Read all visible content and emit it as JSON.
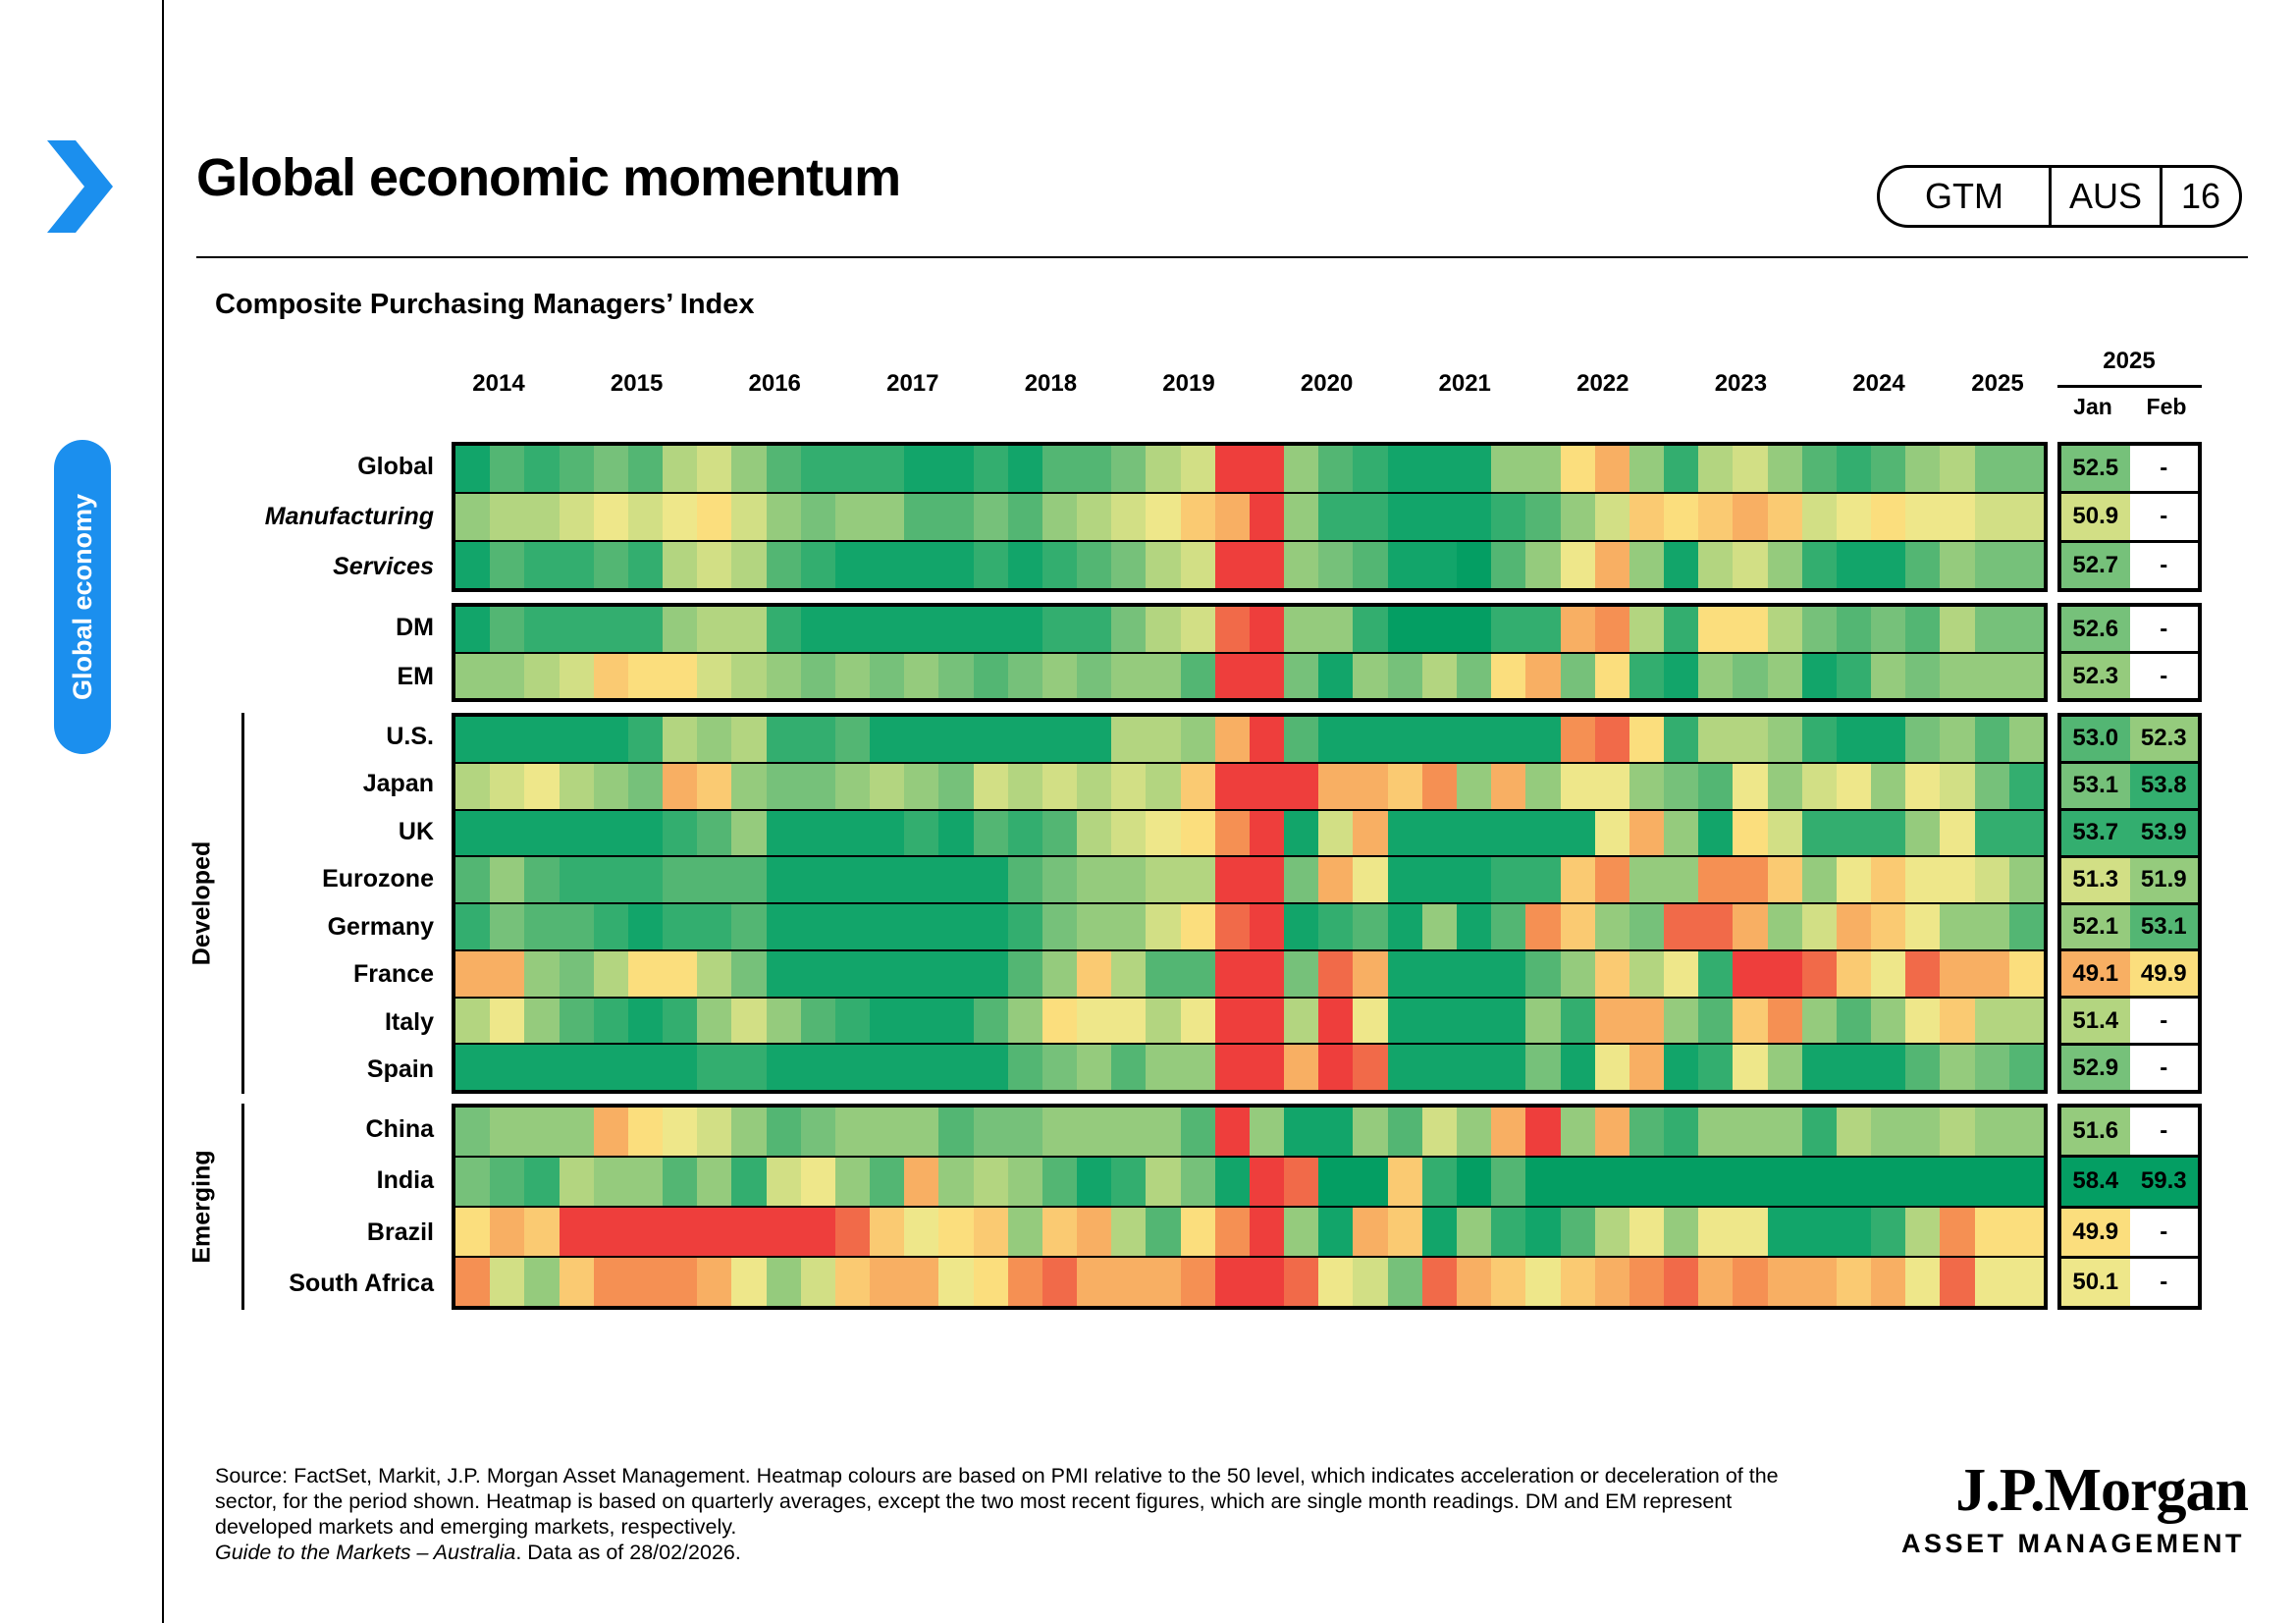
{
  "page": {
    "title": "Global economic momentum",
    "section_tab": "Global economy",
    "badge": {
      "gtm": "GTM",
      "region": "AUS",
      "page_num": "16"
    }
  },
  "chart": {
    "heading": "Composite Purchasing Managers’ Index",
    "table_header": {
      "year": "2025",
      "jan": "Jan",
      "feb": "Feb"
    }
  },
  "footer": {
    "line1": "Source: FactSet, Markit, J.P. Morgan Asset Management. Heatmap colours are based on PMI relative to the 50 level, which indicates acceleration or deceleration of the",
    "line2": "sector, for the period shown. Heatmap is based on quarterly averages, except the two most recent figures, which are single month readings. DM and EM represent",
    "line3": "developed markets and emerging markets, respectively.",
    "line4_italic": "Guide to the Markets – Australia",
    "line4_rest": ". Data as of 28/02/2026."
  },
  "logo": {
    "name": "J.P.Morgan",
    "sub": "ASSET MANAGEMENT"
  },
  "chart_data": {
    "type": "heatmap",
    "title": "Composite Purchasing Managers’ Index",
    "year_labels": [
      "2014",
      "2015",
      "2016",
      "2017",
      "2018",
      "2019",
      "2020",
      "2021",
      "2022",
      "2023",
      "2024",
      "2025"
    ],
    "n_cols": 46,
    "legend_note": "Heatmap colours based on PMI relative to 50; quarterly averages, last two columns are Jan/Feb single-month readings shown numerically at right",
    "palette": {
      "g5": "#049E63",
      "g4": "#12A56A",
      "g3": "#33AE6F",
      "g2": "#53B673",
      "g1": "#76C17A",
      "y3": "#95CB7D",
      "y2": "#B3D580",
      "y1": "#D2DF85",
      "y0": "#EEE78A",
      "o1": "#FBDE7D",
      "o2": "#FACA72",
      "o3": "#F8AF63",
      "o4": "#F59053",
      "r1": "#F16A49",
      "r2": "#EE3E3C"
    },
    "groups": [
      {
        "id": "composite",
        "bracket": null,
        "rows": [
          {
            "label": "Global",
            "italic": false,
            "jan": "52.5",
            "feb": "-",
            "jan_color": "g1",
            "feb_color": null,
            "cells": "g4 g2 g3 g2 g1 g2 y2 y1 y3 g2 g3 g3 g3 g4 g4 g3 g4 g2 g2 g1 y2 y1 r2 r2 y3 g2 g3 g4 g4 g4 y3 y3 o1 o3 y3 g3 y2 y1 y3 g2 g3 g2 y3 y2 g1 g1"
          },
          {
            "label": "Manufacturing",
            "italic": true,
            "jan": "50.9",
            "feb": "-",
            "jan_color": "y1",
            "feb_color": null,
            "cells": "y3 y2 y2 y1 y0 y1 y0 o1 y1 y3 g1 y3 y3 g2 g2 g1 g2 y3 y2 y1 y0 o2 o3 r2 y3 g3 g3 g4 g4 g4 g3 g2 y3 y1 o2 o1 o2 o3 o2 y1 y0 o1 y0 y0 y1 y1"
          },
          {
            "label": "Services",
            "italic": true,
            "jan": "52.7",
            "feb": "-",
            "jan_color": "g1",
            "feb_color": null,
            "cells": "g4 g2 g3 g3 g2 g3 y2 y1 y2 g2 g3 g4 g4 g4 g4 g3 g4 g3 g2 g1 y2 y1 r2 r2 y3 g1 g2 g4 g4 g5 g2 y3 y0 o3 y3 g4 y2 y1 y3 g3 g4 g4 g2 y3 g1 g1"
          }
        ]
      },
      {
        "id": "dm-em",
        "bracket": null,
        "rows": [
          {
            "label": "DM",
            "italic": false,
            "jan": "52.6",
            "feb": "-",
            "jan_color": "g1",
            "feb_color": null,
            "cells": "g4 g2 g3 g3 g3 g3 y3 y2 y2 g3 g4 g4 g4 g4 g4 g4 g4 g3 g3 g1 y2 y1 r1 r2 y3 y3 g3 g5 g5 g5 g3 g3 o3 o4 y2 g3 o1 o1 y2 g1 g2 g1 g2 y2 g1 g1"
          },
          {
            "label": "EM",
            "italic": false,
            "jan": "52.3",
            "feb": "-",
            "jan_color": "y3",
            "feb_color": null,
            "cells": "y3 y3 y2 y1 o2 o1 o1 y1 y2 y3 g1 y3 g1 y3 g1 g2 g1 y3 g1 y3 y3 g2 r2 r2 g1 g4 y3 g1 y2 g1 o1 o3 g1 o1 g3 g4 y3 g1 y3 g4 g3 y3 g1 y3 y3 y3"
          }
        ]
      },
      {
        "id": "developed",
        "bracket": "Developed",
        "rows": [
          {
            "label": "U.S.",
            "italic": false,
            "jan": "53.0",
            "feb": "52.3",
            "jan_color": "g2",
            "feb_color": "y3",
            "cells": "g4 g4 g4 g4 g4 g3 y2 y3 y2 g3 g3 g2 g4 g4 g4 g4 g4 g4 g4 y2 y2 y3 o3 r2 g2 g4 g4 g4 g4 g4 g4 g4 o4 r1 o1 g3 y2 y2 y3 g3 g4 g4 g1 y3 g2 y3"
          },
          {
            "label": "Japan",
            "italic": false,
            "jan": "53.1",
            "feb": "53.8",
            "jan_color": "g1",
            "feb_color": "g3",
            "cells": "y2 y1 y0 y2 y3 g1 o3 o2 y3 g1 g1 y3 y2 y3 g1 y1 y2 y1 y2 y1 y2 o2 r2 r2 r2 o3 o3 o2 o4 y3 o3 y3 y0 y0 y3 g1 g2 y0 y3 y1 y0 y3 y0 y1 g1 g3"
          },
          {
            "label": "UK",
            "italic": false,
            "jan": "53.7",
            "feb": "53.9",
            "jan_color": "g3",
            "feb_color": "g3",
            "cells": "g4 g4 g4 g4 g4 g4 g3 g2 y3 g4 g4 g4 g4 g3 g4 g2 g3 g2 y2 y1 y0 o1 o4 r2 g4 y1 o3 g4 g4 g4 g4 g4 g4 y0 o3 y3 g4 o1 y1 g3 g3 g3 y3 y0 g3 g3"
          },
          {
            "label": "Eurozone",
            "italic": false,
            "jan": "51.3",
            "feb": "51.9",
            "jan_color": "y1",
            "feb_color": "y3",
            "cells": "g2 y3 g2 g3 g3 g3 g2 g2 g2 g4 g4 g4 g4 g4 g4 g4 g2 g1 y3 y3 y2 y2 r2 r2 g1 o3 y0 g4 g4 g4 g3 g3 o2 o4 y3 y3 o4 o4 o2 y3 y0 o2 y0 y0 y1 y3"
          },
          {
            "label": "Germany",
            "italic": false,
            "jan": "52.1",
            "feb": "53.1",
            "jan_color": "y3",
            "feb_color": "g2",
            "cells": "g3 g1 g2 g2 g3 g4 g3 g3 g2 g4 g4 g4 g4 g4 g4 g4 g3 g1 y3 y3 y1 o1 r1 r2 g4 g3 g2 g4 y3 g4 g2 o4 o2 y3 g1 r1 r1 o3 y3 y1 o3 o2 y0 y3 y3 g2"
          },
          {
            "label": "France",
            "italic": false,
            "jan": "49.1",
            "feb": "49.9",
            "jan_color": "o3",
            "feb_color": "o1",
            "cells": "o3 o3 y3 g1 y2 o1 o1 y2 g1 g4 g4 g4 g4 g4 g4 g4 g2 y3 o2 y2 g2 g2 r2 r2 g1 r1 o3 g4 g4 g4 g4 g2 y3 o2 y2 y0 g3 r2 r2 r1 o2 y0 r1 o3 o3 o1"
          },
          {
            "label": "Italy",
            "italic": false,
            "jan": "51.4",
            "feb": "-",
            "jan_color": "y2",
            "feb_color": null,
            "cells": "y2 y0 y3 g2 g3 g4 g3 y3 y1 y3 g2 g3 g4 g4 g4 g2 y3 o1 y0 y0 y2 y0 r2 r2 y2 r2 y0 g4 g4 g4 g4 y3 g3 o3 o3 y3 g2 o2 o4 y3 g2 y3 y0 o2 y2 y2"
          },
          {
            "label": "Spain",
            "italic": false,
            "jan": "52.9",
            "feb": "-",
            "jan_color": "g1",
            "feb_color": null,
            "cells": "g4 g4 g4 g4 g4 g4 g4 g3 g3 g4 g4 g4 g4 g4 g4 g4 g2 g1 y3 g2 y3 y3 r2 r2 o3 r2 r1 g4 g4 g4 g4 g1 g4 y0 o3 g4 g3 y0 y3 g4 g4 g4 g2 y3 g1 g2"
          }
        ]
      },
      {
        "id": "emerging",
        "bracket": "Emerging",
        "rows": [
          {
            "label": "China",
            "italic": false,
            "jan": "51.6",
            "feb": "-",
            "jan_color": "y3",
            "feb_color": null,
            "cells": "g1 y3 y3 y3 o3 o1 y0 y1 y3 g2 g1 y3 y3 y3 g2 g1 g1 y3 y3 y3 y3 g2 r2 y3 g4 g4 y3 g2 y1 y3 o3 r2 y3 o3 g2 g3 y3 y3 y3 g3 y2 y3 y3 y2 y3 y3"
          },
          {
            "label": "India",
            "italic": false,
            "jan": "58.4",
            "feb": "59.3",
            "jan_color": "g5",
            "feb_color": "g5",
            "cells": "g1 g2 g3 y2 y3 y3 g2 y3 g3 y1 y0 y3 g2 o3 y3 y2 y3 g2 g4 g3 y2 g1 g4 r2 r1 g5 g5 o2 g3 g5 g2 g5 g5 g5 g5 g5 g5 g5 g5 g5 g5 g5 g5 g5 g5 g5"
          },
          {
            "label": "Brazil",
            "italic": false,
            "jan": "49.9",
            "feb": "-",
            "jan_color": "o1",
            "feb_color": null,
            "cells": "o1 o3 o2 r2 r2 r2 r2 r2 r2 r2 r2 r1 o2 y0 o1 o2 y3 o2 o3 y2 g2 o1 o4 r2 y3 g4 o3 o2 g4 y3 g3 g4 g2 y2 y0 y3 y0 y0 g4 g4 g4 g3 y2 o4 o1 o1"
          },
          {
            "label": "South Africa",
            "italic": false,
            "jan": "50.1",
            "feb": "-",
            "jan_color": "y0",
            "feb_color": null,
            "cells": "o4 y1 y3 o2 o4 o4 o4 o3 y0 y3 y1 o2 o3 o3 y0 o1 o4 r1 o3 o3 o3 o4 r2 r2 r1 y0 y1 g1 r1 o3 o2 y0 o2 o3 o4 r1 o3 o4 o3 o3 o2 o3 y0 r1 y0 y0"
          }
        ]
      }
    ]
  }
}
